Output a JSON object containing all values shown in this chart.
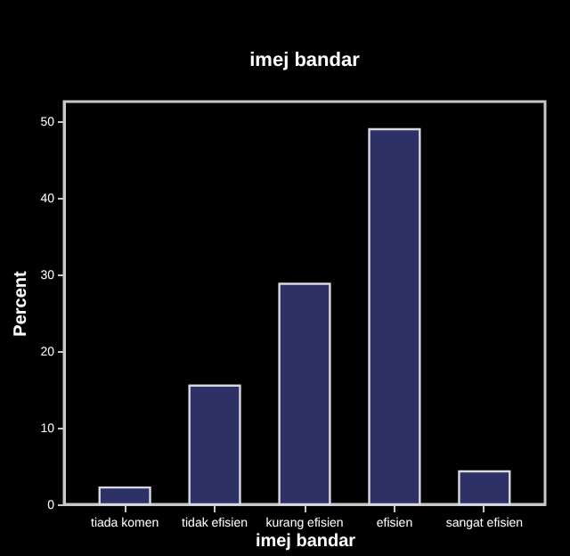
{
  "chart_data": {
    "type": "bar",
    "title": "imej bandar",
    "xlabel": "imej bandar",
    "ylabel": "Percent",
    "categories": [
      "tiada komen",
      "tidak efisien",
      "kurang efisien",
      "efisien",
      "sangat efisien"
    ],
    "values": [
      2.2,
      15.5,
      28.8,
      49.0,
      4.3
    ],
    "color": "#2e3166",
    "ylim": [
      0,
      52.6
    ],
    "yticks": [
      0,
      10,
      20,
      30,
      40,
      50
    ],
    "grid": false
  }
}
